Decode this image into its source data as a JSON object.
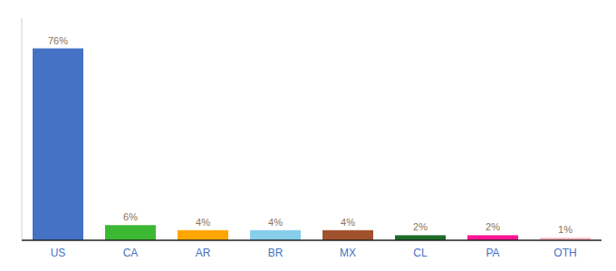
{
  "chart_data": {
    "type": "bar",
    "categories": [
      "US",
      "CA",
      "AR",
      "BR",
      "MX",
      "CL",
      "PA",
      "OTH"
    ],
    "values": [
      76,
      6,
      4,
      4,
      4,
      2,
      2,
      1
    ],
    "value_labels": [
      "76%",
      "6%",
      "4%",
      "4%",
      "4%",
      "2%",
      "2%",
      "1%"
    ],
    "colors": [
      "#4472C4",
      "#3CB832",
      "#FFA500",
      "#87CEEB",
      "#A0522D",
      "#1F6B2A",
      "#FF1493",
      "#FFB6C1"
    ],
    "ylim": [
      0,
      88
    ],
    "data_labels": true,
    "tick_labels": "x"
  }
}
